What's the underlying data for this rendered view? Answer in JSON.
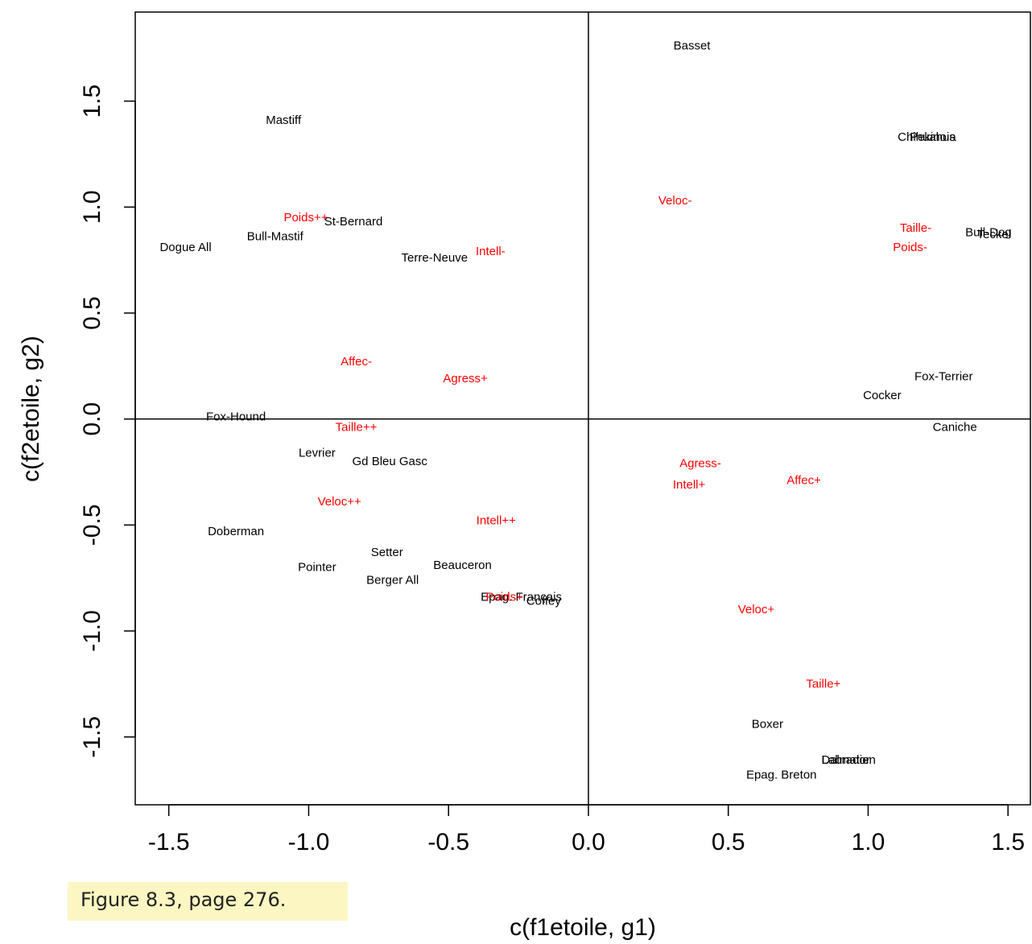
{
  "caption": "Figure 8.3, page 276.",
  "chart_data": {
    "type": "scatter",
    "xlabel": "c(f1etoile, g1)",
    "ylabel": "c(f2etoile, g2)",
    "xlim": [
      -1.62,
      1.58
    ],
    "ylim": [
      -1.82,
      1.92
    ],
    "xticks": [
      "-1.5",
      "-1.0",
      "-0.5",
      "0.0",
      "0.5",
      "1.0",
      "1.5"
    ],
    "yticks": [
      "-1.5",
      "-1.0",
      "-0.5",
      "0.0",
      "0.5",
      "1.0",
      "1.5"
    ],
    "reference_lines": {
      "x": 0,
      "y": 0
    },
    "grid": false,
    "series": [
      {
        "color": "#000000",
        "points": [
          {
            "label": "Basset",
            "x": 0.37,
            "y": 1.76
          },
          {
            "label": "Mastiff",
            "x": -1.09,
            "y": 1.41
          },
          {
            "label": "Chihuahua",
            "x": 1.21,
            "y": 1.33
          },
          {
            "label": "Pekinois",
            "x": 1.23,
            "y": 1.33
          },
          {
            "label": "St-Bernard",
            "x": -0.84,
            "y": 0.93
          },
          {
            "label": "Bull-Mastif",
            "x": -1.12,
            "y": 0.86
          },
          {
            "label": "Dogue All",
            "x": -1.44,
            "y": 0.81
          },
          {
            "label": "Terre-Neuve",
            "x": -0.55,
            "y": 0.76
          },
          {
            "label": "Bull-Dog",
            "x": 1.43,
            "y": 0.88
          },
          {
            "label": "Teckel",
            "x": 1.45,
            "y": 0.87
          },
          {
            "label": "Fox-Terrier",
            "x": 1.27,
            "y": 0.2
          },
          {
            "label": "Cocker",
            "x": 1.05,
            "y": 0.11
          },
          {
            "label": "Fox-Hound",
            "x": -1.26,
            "y": 0.01
          },
          {
            "label": "Caniche",
            "x": 1.31,
            "y": -0.04
          },
          {
            "label": "Levrier",
            "x": -0.97,
            "y": -0.16
          },
          {
            "label": "Gd Bleu Gasc",
            "x": -0.71,
            "y": -0.2
          },
          {
            "label": "Doberman",
            "x": -1.26,
            "y": -0.53
          },
          {
            "label": "Setter",
            "x": -0.72,
            "y": -0.63
          },
          {
            "label": "Beauceron",
            "x": -0.45,
            "y": -0.69
          },
          {
            "label": "Pointer",
            "x": -0.97,
            "y": -0.7
          },
          {
            "label": "Berger All",
            "x": -0.7,
            "y": -0.76
          },
          {
            "label": "Epag. Français",
            "x": -0.24,
            "y": -0.84
          },
          {
            "label": "Coffey",
            "x": -0.16,
            "y": -0.86
          },
          {
            "label": "Boxer",
            "x": 0.64,
            "y": -1.44
          },
          {
            "label": "Dalmatien",
            "x": 0.93,
            "y": -1.61
          },
          {
            "label": "Labrador",
            "x": 0.92,
            "y": -1.61
          },
          {
            "label": "Epag. Breton",
            "x": 0.69,
            "y": -1.68
          }
        ]
      },
      {
        "color": "#ff0000",
        "points": [
          {
            "label": "Veloc-",
            "x": 0.31,
            "y": 1.03
          },
          {
            "label": "Poids++",
            "x": -1.01,
            "y": 0.95
          },
          {
            "label": "Taille-",
            "x": 1.17,
            "y": 0.9
          },
          {
            "label": "Intell-",
            "x": -0.35,
            "y": 0.79
          },
          {
            "label": "Poids-",
            "x": 1.15,
            "y": 0.81
          },
          {
            "label": "Affec-",
            "x": -0.83,
            "y": 0.27
          },
          {
            "label": "Agress+",
            "x": -0.44,
            "y": 0.19
          },
          {
            "label": "Taille++",
            "x": -0.83,
            "y": -0.04
          },
          {
            "label": "Agress-",
            "x": 0.4,
            "y": -0.21
          },
          {
            "label": "Intell+",
            "x": 0.36,
            "y": -0.31
          },
          {
            "label": "Affec+",
            "x": 0.77,
            "y": -0.29
          },
          {
            "label": "Veloc++",
            "x": -0.89,
            "y": -0.39
          },
          {
            "label": "Intell++",
            "x": -0.33,
            "y": -0.48
          },
          {
            "label": "Poids+",
            "x": -0.3,
            "y": -0.84
          },
          {
            "label": "Veloc+",
            "x": 0.6,
            "y": -0.9
          },
          {
            "label": "Taille+",
            "x": 0.84,
            "y": -1.25
          }
        ]
      }
    ]
  }
}
